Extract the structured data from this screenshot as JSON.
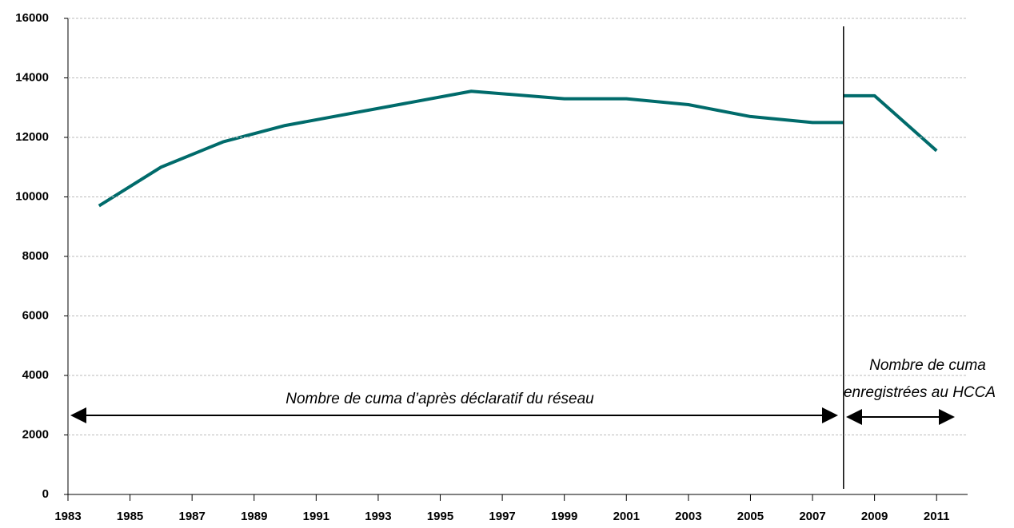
{
  "chart_data": {
    "type": "line",
    "series": [
      {
        "color": "#006b6b",
        "x": [
          1984,
          1986,
          1988,
          1990,
          1996,
          1999,
          2001,
          2003,
          2005,
          2007,
          2008
        ],
        "values": [
          9700,
          11000,
          11850,
          12400,
          13550,
          13300,
          13300,
          13100,
          12700,
          12500,
          12500
        ]
      },
      {
        "color": "#006b6b",
        "x": [
          2008,
          2009,
          2011
        ],
        "values": [
          13400,
          13400,
          11550
        ]
      }
    ],
    "xlim": [
      1983,
      2012
    ],
    "xticks": [
      1983,
      1985,
      1987,
      1989,
      1991,
      1993,
      1995,
      1997,
      1999,
      2001,
      2003,
      2005,
      2007,
      2009,
      2011
    ],
    "ylim": [
      0,
      16000
    ],
    "yticks": [
      0,
      2000,
      4000,
      6000,
      8000,
      10000,
      12000,
      14000,
      16000
    ],
    "grid": true,
    "vline": 2008,
    "annotations": [
      "Nombre de cuma d’après déclaratif du réseau",
      "Nombre de cuma",
      "enregistrées au HCCA"
    ]
  }
}
